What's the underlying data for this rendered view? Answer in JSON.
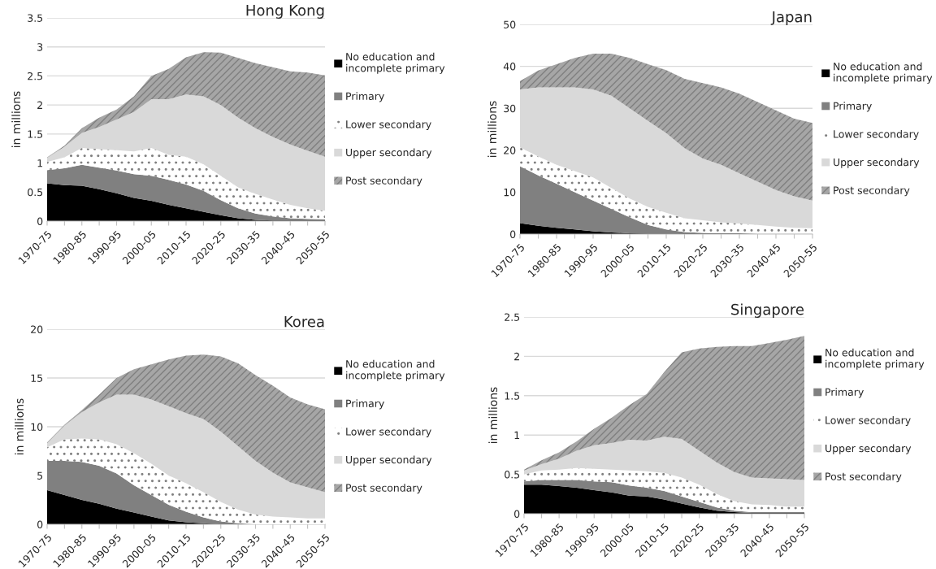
{
  "chart_data": [
    {
      "type": "area",
      "stacked": true,
      "title": "Hong Kong",
      "ylabel": "in millions",
      "legend": "right",
      "grid": "y",
      "categories": [
        "1970-75",
        null,
        "1980-85",
        null,
        "1990-95",
        null,
        "2000-05",
        null,
        "2010-15",
        null,
        "2020-25",
        null,
        "2030-35",
        null,
        "2040-45",
        null,
        "2050-55"
      ],
      "ylim": [
        0,
        3.5
      ],
      "yticks": [
        0,
        0.5,
        1,
        1.5,
        2,
        2.5,
        3,
        3.5
      ],
      "series": [
        {
          "name": "No education and\nincomplete primary",
          "color": "#000000",
          "values": [
            0.65,
            0.62,
            0.61,
            0.55,
            0.48,
            0.4,
            0.35,
            0.28,
            0.22,
            0.16,
            0.1,
            0.05,
            0.02,
            0.01,
            0.01,
            0.01,
            0.01
          ]
        },
        {
          "name": "Primary",
          "color": "#808080",
          "values": [
            0.23,
            0.29,
            0.36,
            0.37,
            0.39,
            0.41,
            0.43,
            0.43,
            0.41,
            0.36,
            0.26,
            0.17,
            0.11,
            0.07,
            0.04,
            0.03,
            0.02
          ]
        },
        {
          "name": "Lower secondary",
          "color": "#ffffff",
          "values": [
            0.14,
            0.19,
            0.29,
            0.32,
            0.35,
            0.39,
            0.48,
            0.43,
            0.48,
            0.46,
            0.42,
            0.36,
            0.34,
            0.29,
            0.23,
            0.18,
            0.15
          ]
        },
        {
          "name": "Upper secondary",
          "color": "#d9d9d9",
          "values": [
            0.07,
            0.18,
            0.26,
            0.38,
            0.53,
            0.68,
            0.84,
            0.96,
            1.07,
            1.17,
            1.22,
            1.2,
            1.13,
            1.08,
            1.04,
            0.99,
            0.93
          ]
        },
        {
          "name": "Post secondary",
          "color": "#a6a6a6",
          "values": [
            0.01,
            0.02,
            0.08,
            0.16,
            0.17,
            0.27,
            0.4,
            0.52,
            0.64,
            0.76,
            0.9,
            1.03,
            1.12,
            1.2,
            1.26,
            1.35,
            1.4
          ]
        }
      ]
    },
    {
      "type": "area",
      "stacked": true,
      "title": "Japan",
      "ylabel": "in millions",
      "legend": "right",
      "grid": "y",
      "categories": [
        "1970-75",
        null,
        "1980-85",
        null,
        "1990-95",
        null,
        "2000-05",
        null,
        "2010-15",
        null,
        "2020-25",
        null,
        "2030-35",
        null,
        "2040-45",
        null,
        "2050-55"
      ],
      "ylim": [
        0,
        50
      ],
      "yticks": [
        0,
        10,
        20,
        30,
        40,
        50
      ],
      "series": [
        {
          "name": "No education and\nincomplete primary",
          "color": "#000000",
          "values": [
            2.6,
            2.0,
            1.5,
            1.1,
            0.7,
            0.4,
            0.2,
            0.1,
            0.1,
            0,
            0,
            0,
            0,
            0,
            0,
            0,
            0
          ]
        },
        {
          "name": "Primary",
          "color": "#808080",
          "values": [
            13.6,
            12,
            10.5,
            8.9,
            7.3,
            5.6,
            3.8,
            2.1,
            1,
            0.5,
            0.3,
            0.2,
            0.2,
            0.1,
            0.1,
            0.1,
            0.1
          ]
        },
        {
          "name": "Lower secondary",
          "color": "#ffffff",
          "values": [
            4.5,
            4.5,
            4.5,
            5,
            5.5,
            5,
            4.5,
            4.3,
            4,
            3.3,
            3,
            2.6,
            2.3,
            2.1,
            1.7,
            1.4,
            1.3
          ]
        },
        {
          "name": "Upper secondary",
          "color": "#d9d9d9",
          "values": [
            13.8,
            16.5,
            18.5,
            20,
            21,
            22,
            21.5,
            20.5,
            19,
            16.7,
            14.7,
            13.7,
            12,
            10.3,
            8.7,
            7.5,
            6.6
          ]
        },
        {
          "name": "Post secondary",
          "color": "#a6a6a6",
          "values": [
            2,
            4,
            5.5,
            7,
            8.5,
            10,
            12,
            13.5,
            15,
            16.5,
            18,
            18.5,
            19,
            19,
            19,
            18.5,
            18.5
          ]
        }
      ]
    },
    {
      "type": "area",
      "stacked": true,
      "title": "Korea",
      "ylabel": "in millions",
      "legend": "right",
      "grid": "y",
      "categories": [
        "1970-75",
        null,
        "1980-85",
        null,
        "1990-95",
        null,
        "2000-05",
        null,
        "2010-15",
        null,
        "2020-25",
        null,
        "2030-35",
        null,
        "2040-45",
        null,
        "2050-55"
      ],
      "ylim": [
        0,
        20
      ],
      "yticks": [
        0,
        5,
        10,
        15,
        20
      ],
      "series": [
        {
          "name": "No education and\nincomplete primary",
          "color": "#000000",
          "values": [
            3.5,
            3.0,
            2.5,
            2.1,
            1.6,
            1.2,
            0.8,
            0.4,
            0.2,
            0.1,
            0,
            0,
            0,
            0,
            0,
            0,
            0
          ]
        },
        {
          "name": "Primary",
          "color": "#808080",
          "values": [
            3.0,
            3.5,
            3.9,
            3.9,
            3.6,
            2.8,
            2.2,
            1.6,
            1.1,
            0.6,
            0.3,
            0.1,
            0,
            0,
            0,
            0,
            0
          ]
        },
        {
          "name": "Lower secondary",
          "color": "#ffffff",
          "values": [
            1.4,
            2.2,
            2.4,
            2.7,
            3.0,
            3.3,
            3.2,
            3.0,
            2.9,
            2.6,
            2.0,
            1.4,
            1.0,
            0.8,
            0.7,
            0.6,
            0.6
          ]
        },
        {
          "name": "Upper secondary",
          "color": "#d9d9d9",
          "values": [
            0.4,
            1.4,
            2.7,
            3.8,
            5.1,
            6.0,
            6.6,
            7.1,
            7.2,
            7.5,
            7.2,
            6.5,
            5.5,
            4.5,
            3.6,
            3.2,
            2.7
          ]
        },
        {
          "name": "Post secondary",
          "color": "#a6a6a6",
          "values": [
            0.1,
            0.1,
            0.2,
            0.8,
            1.7,
            2.6,
            3.6,
            4.8,
            5.9,
            6.6,
            7.7,
            8.5,
            8.8,
            8.9,
            8.7,
            8.5,
            8.5
          ]
        }
      ]
    },
    {
      "type": "area",
      "stacked": true,
      "title": "Singapore",
      "ylabel": "in millions",
      "legend": "right",
      "grid": "y",
      "categories": [
        "1970-75",
        null,
        "1980-85",
        null,
        "1990-95",
        null,
        "2000-05",
        null,
        "2010-15",
        null,
        "2020-25",
        null,
        "2030-35",
        null,
        "2040-45",
        null,
        "2050-55"
      ],
      "ylim": [
        0,
        2.5
      ],
      "yticks": [
        0,
        0.5,
        1,
        1.5,
        2,
        2.5
      ],
      "series": [
        {
          "name": "No education and\nincomplete primary",
          "color": "#000000",
          "values": [
            0.37,
            0.37,
            0.35,
            0.33,
            0.3,
            0.27,
            0.23,
            0.22,
            0.18,
            0.13,
            0.08,
            0.04,
            0.02,
            0.01,
            0.01,
            0.01,
            0.01
          ]
        },
        {
          "name": "Primary",
          "color": "#808080",
          "values": [
            0.04,
            0.06,
            0.08,
            0.1,
            0.11,
            0.13,
            0.13,
            0.11,
            0.11,
            0.09,
            0.07,
            0.04,
            0.02,
            0.01,
            0.01,
            0.01,
            0.01
          ]
        },
        {
          "name": "Lower secondary",
          "color": "#ffffff",
          "values": [
            0.09,
            0.12,
            0.13,
            0.15,
            0.16,
            0.16,
            0.19,
            0.21,
            0.23,
            0.24,
            0.22,
            0.17,
            0.12,
            0.1,
            0.09,
            0.07,
            0.07
          ]
        },
        {
          "name": "Upper secondary",
          "color": "#d9d9d9",
          "values": [
            0.05,
            0.08,
            0.14,
            0.22,
            0.3,
            0.34,
            0.39,
            0.39,
            0.46,
            0.49,
            0.43,
            0.4,
            0.37,
            0.34,
            0.34,
            0.35,
            0.34
          ]
        },
        {
          "name": "Post secondary",
          "color": "#a6a6a6",
          "values": [
            0.01,
            0.05,
            0.08,
            0.12,
            0.21,
            0.32,
            0.44,
            0.59,
            0.82,
            1.1,
            1.3,
            1.47,
            1.6,
            1.67,
            1.72,
            1.77,
            1.83
          ]
        }
      ]
    }
  ]
}
